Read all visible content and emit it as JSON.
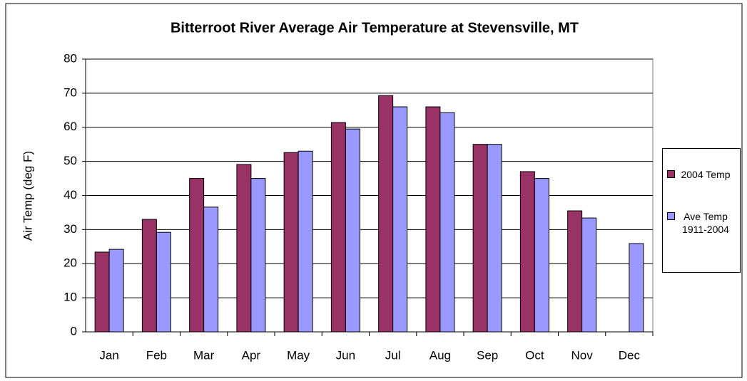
{
  "chart_data": {
    "type": "bar",
    "title": "Bitterroot River Average Air Temperature at Stevensville, MT",
    "y_label": "Air Temp (deg F)",
    "categories": [
      "Jan",
      "Feb",
      "Mar",
      "Apr",
      "May",
      "Jun",
      "Jul",
      "Aug",
      "Sep",
      "Oct",
      "Nov",
      "Dec"
    ],
    "series": [
      {
        "name": "2004 Temp",
        "color": "#993366",
        "values": [
          23.4,
          33,
          45,
          49.1,
          52.6,
          61.4,
          69.3,
          66,
          55,
          47,
          35.5,
          null
        ]
      },
      {
        "name": "Ave Temp 1911-2004",
        "color": "#9999ff",
        "values": [
          24.2,
          29.2,
          36.6,
          45,
          53,
          59.5,
          66,
          64.3,
          55,
          45,
          33.4,
          25.9
        ]
      }
    ],
    "ylim": [
      0,
      80
    ],
    "yticks": [
      0,
      10,
      20,
      30,
      40,
      50,
      60,
      70,
      80
    ],
    "grid": true,
    "legend": "right"
  }
}
